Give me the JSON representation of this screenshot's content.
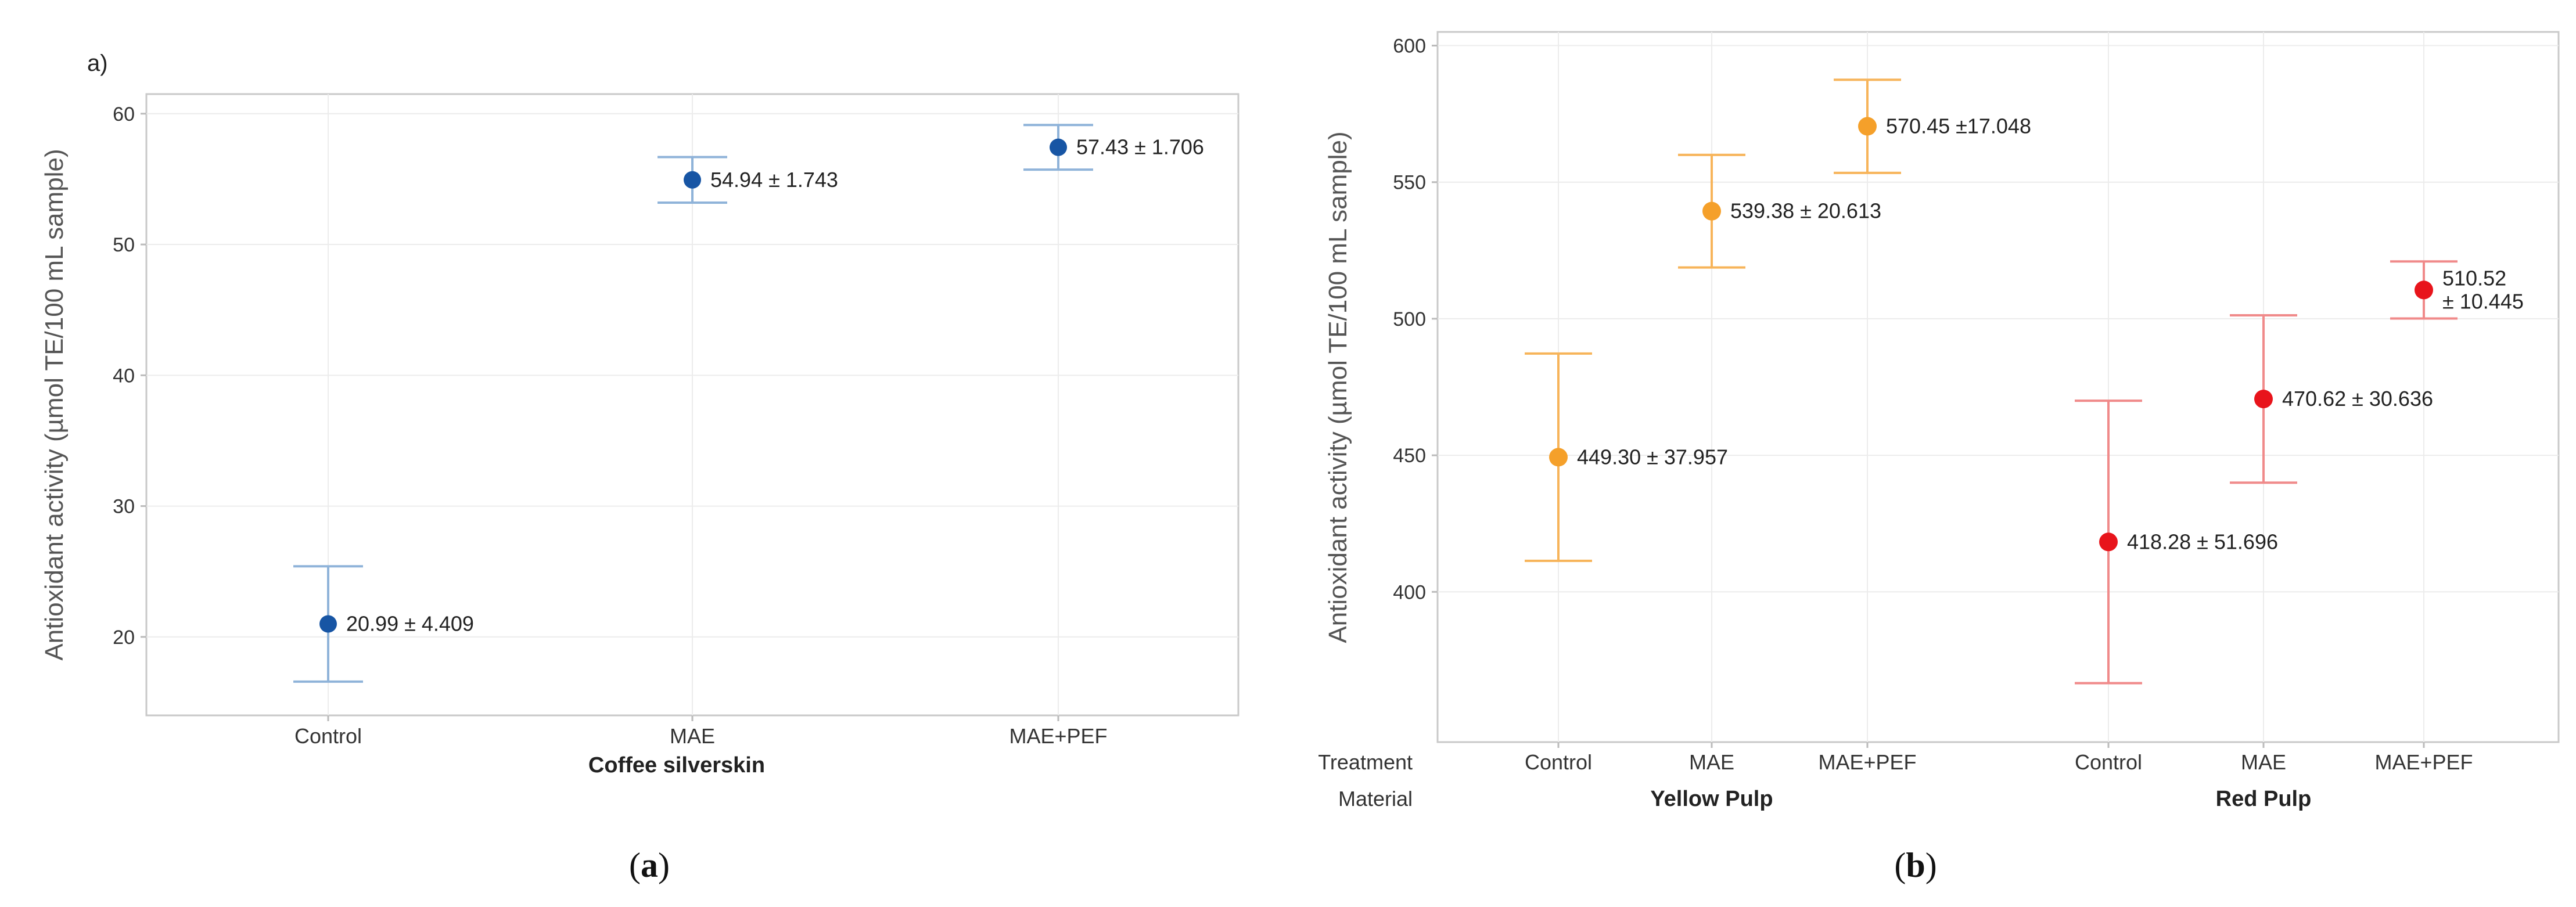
{
  "chart_data": [
    {
      "type": "scatter",
      "subtype": "interval-plot",
      "panel_letter": "a)",
      "caption_letter": "a",
      "ylabel": "Antioxidant activity (µmol TE/100 mL sample)",
      "xlabel": "Coffee silverskin",
      "ylim": [
        14,
        61.5
      ],
      "yticks": [
        20,
        30,
        40,
        50,
        60
      ],
      "grid": true,
      "categories": [
        "Control",
        "MAE",
        "MAE+PEF"
      ],
      "series": [
        {
          "name": "Coffee silverskin",
          "color": "#1755a4",
          "error_color": "#8fb3d9",
          "values": [
            20.99,
            54.94,
            57.43
          ],
          "errors": [
            4.409,
            1.743,
            1.706
          ],
          "labels": [
            [
              "20.99 ± 4.409"
            ],
            [
              "54.94 ± 1.743"
            ],
            [
              "57.43 ± 1.706"
            ]
          ]
        }
      ]
    },
    {
      "type": "scatter",
      "subtype": "interval-plot",
      "ylabel": "Antioxidant activity (µmol TE/100 mL sample)",
      "caption_letter": "b",
      "ylim": [
        345,
        605
      ],
      "yticks": [
        400,
        450,
        500,
        550,
        600
      ],
      "grid": true,
      "row_headers": [
        "Treatment",
        "Material"
      ],
      "groups": [
        "Yellow Pulp",
        "Red Pulp"
      ],
      "categories": [
        "Control",
        "MAE",
        "MAE+PEF"
      ],
      "series": [
        {
          "name": "Yellow Pulp",
          "color": "#f5a02a",
          "error_color": "#f7b45a",
          "values": [
            449.3,
            539.38,
            570.45
          ],
          "errors": [
            37.957,
            20.613,
            17.048
          ],
          "labels": [
            [
              "449.30  ± 37.957"
            ],
            [
              "539.38 ± 20.613"
            ],
            [
              "570.45 ±17.048"
            ]
          ]
        },
        {
          "name": "Red Pulp",
          "color": "#e8141b",
          "error_color": "#f08a8a",
          "values": [
            418.28,
            470.62,
            510.52
          ],
          "errors": [
            51.696,
            30.636,
            10.445
          ],
          "labels": [
            [
              "418.28 ± 51.696"
            ],
            [
              "470.62 ± 30.636"
            ],
            [
              "510.52",
              "± 10.445"
            ]
          ]
        }
      ]
    }
  ]
}
